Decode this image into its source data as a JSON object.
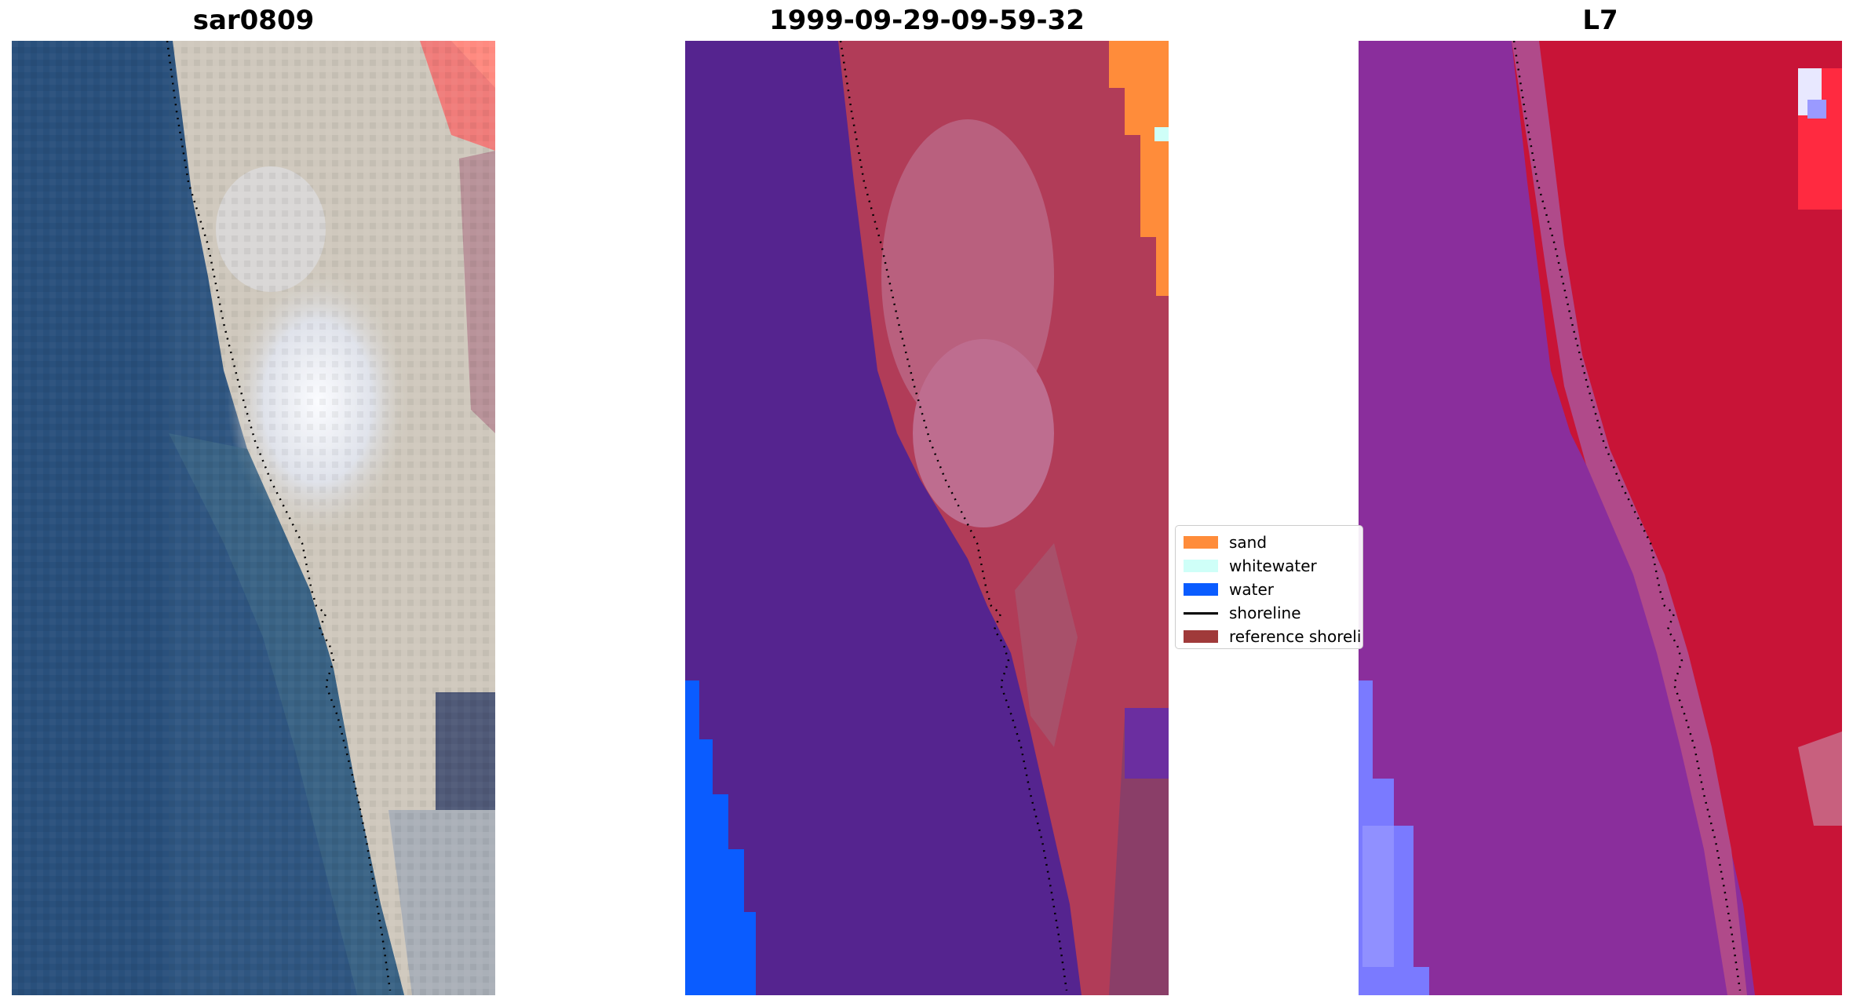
{
  "panels": [
    {
      "title": "sar0809",
      "kind": "rgb"
    },
    {
      "title": "1999-09-29-09-59-32",
      "kind": "classified"
    },
    {
      "title": "L7",
      "kind": "falsecolor"
    }
  ],
  "legend": {
    "items": [
      {
        "label": "sand",
        "type": "patch",
        "color": "#ff8c3a"
      },
      {
        "label": "whitewater",
        "type": "patch",
        "color": "#cffff8"
      },
      {
        "label": "water",
        "type": "patch",
        "color": "#0a5cff"
      },
      {
        "label": "shoreline",
        "type": "line",
        "color": "#000000"
      },
      {
        "label": "reference shoreline",
        "type": "patch",
        "color": "#a03a3a"
      }
    ]
  },
  "colors": {
    "deep_water_rgb": "#2e5580",
    "beach_rgb": "#d7cfc0",
    "classified_water_dark": "#55248f",
    "classified_land": "#b44055",
    "falsecolor_water": "#8a2e9c",
    "falsecolor_land": "#c81437"
  }
}
